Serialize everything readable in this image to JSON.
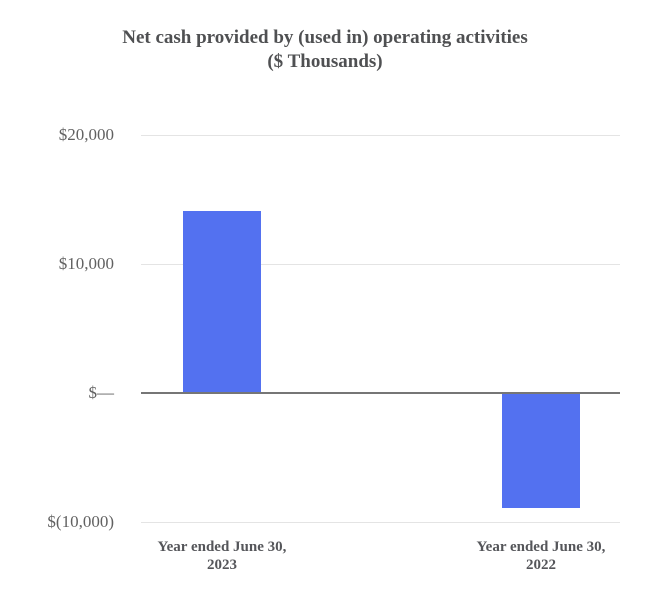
{
  "title": {
    "line1": "Net cash provided by (used in) operating activities",
    "line2": "($ Thousands)"
  },
  "colors": {
    "bar": "#5371F0",
    "gridline": "#e4e4e4",
    "zero_line": "#767676",
    "title_text": "#4f5052",
    "ytick_text": "#616161",
    "xtick_text": "#55565a"
  },
  "chart_data": {
    "type": "bar",
    "title": "Net cash provided by (used in) operating activities ($ Thousands)",
    "categories": [
      [
        "Year ended June 30,",
        "2023"
      ],
      [
        "Year ended June 30,",
        "2022"
      ]
    ],
    "values": [
      14100,
      -8900
    ],
    "ylim": [
      -10000,
      20000
    ],
    "yticks": [
      {
        "value": 20000,
        "label": "$20,000"
      },
      {
        "value": 10000,
        "label": "$10,000"
      },
      {
        "value": 0,
        "label": "$—"
      },
      {
        "value": -10000,
        "label": "$(10,000)"
      }
    ],
    "grid": true,
    "legend": false,
    "ylabel": "",
    "xlabel": ""
  }
}
